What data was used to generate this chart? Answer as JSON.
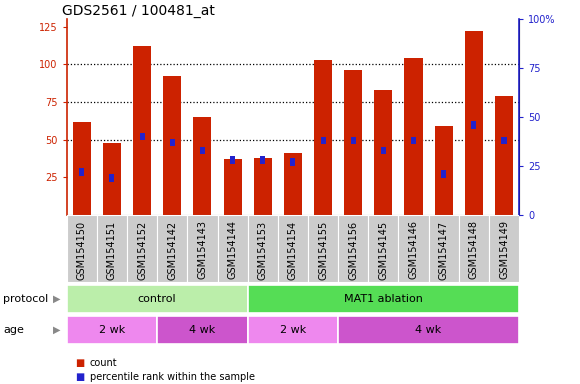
{
  "title": "GDS2561 / 100481_at",
  "samples": [
    "GSM154150",
    "GSM154151",
    "GSM154152",
    "GSM154142",
    "GSM154143",
    "GSM154144",
    "GSM154153",
    "GSM154154",
    "GSM154155",
    "GSM154156",
    "GSM154145",
    "GSM154146",
    "GSM154147",
    "GSM154148",
    "GSM154149"
  ],
  "count_values": [
    62,
    48,
    112,
    92,
    65,
    37,
    38,
    41,
    103,
    96,
    83,
    104,
    59,
    122,
    79
  ],
  "percentile_values": [
    22,
    19,
    40,
    37,
    33,
    28,
    28,
    27,
    38,
    38,
    33,
    38,
    21,
    46,
    38
  ],
  "left_yticks": [
    25,
    50,
    75,
    100,
    125
  ],
  "left_ylim": [
    0,
    130
  ],
  "right_yticks": [
    0,
    25,
    50,
    75,
    100
  ],
  "right_ytick_labels": [
    "0",
    "25",
    "50",
    "75",
    "100%"
  ],
  "right_ylim": [
    0,
    130
  ],
  "bar_color": "#cc2200",
  "pct_color": "#2222cc",
  "bg_color": "#cccccc",
  "protocol_groups": [
    {
      "label": "control",
      "start": 0,
      "end": 6,
      "color": "#bbeeaa"
    },
    {
      "label": "MAT1 ablation",
      "start": 6,
      "end": 15,
      "color": "#55dd55"
    }
  ],
  "age_groups": [
    {
      "label": "2 wk",
      "start": 0,
      "end": 3,
      "color": "#ee88ee"
    },
    {
      "label": "4 wk",
      "start": 3,
      "end": 6,
      "color": "#cc55cc"
    },
    {
      "label": "2 wk",
      "start": 6,
      "end": 9,
      "color": "#ee88ee"
    },
    {
      "label": "4 wk",
      "start": 9,
      "end": 15,
      "color": "#cc55cc"
    }
  ],
  "protocol_label": "protocol",
  "age_label": "age",
  "legend_count_label": "count",
  "legend_pct_label": "percentile rank within the sample",
  "title_fontsize": 10,
  "tick_fontsize": 7,
  "annot_fontsize": 8,
  "row_label_fontsize": 8
}
